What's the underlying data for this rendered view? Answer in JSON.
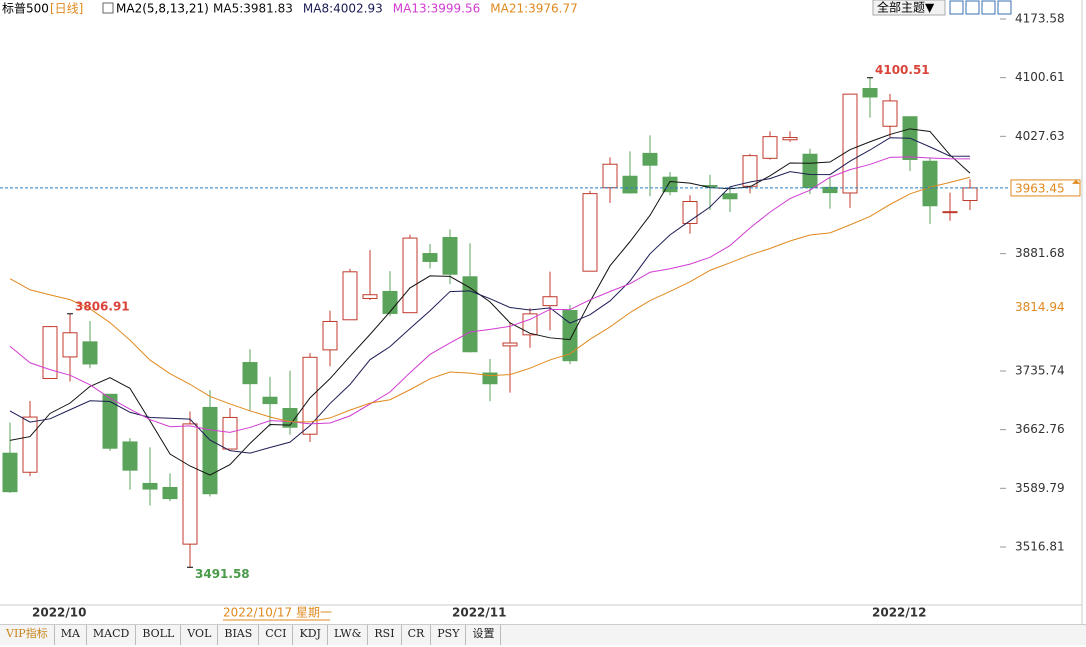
{
  "chart_data": {
    "type": "candlestick",
    "title": "标普500",
    "period": "[日线]",
    "indicator": "MA2(5,8,13,21)",
    "categories": [
      null,
      "2022/10",
      null,
      null,
      null,
      null,
      null,
      null,
      null,
      null,
      null,
      null,
      null,
      null,
      null,
      null,
      null,
      null,
      null,
      null,
      null,
      null,
      "2022/11",
      null,
      null,
      null,
      null,
      null,
      null,
      null,
      null,
      null,
      null,
      null,
      null,
      null,
      null,
      null,
      null,
      null,
      null,
      null,
      null,
      "2022/12",
      null,
      null,
      null,
      null,
      null
    ],
    "open": [
      3633.48,
      3609.78,
      3726.46,
      3753.25,
      3771.97,
      3706.74,
      3647.51,
      3595.86,
      3590.83,
      3520.37,
      3690.41,
      3638.65,
      3746.26,
      3703.11,
      3689.05,
      3657.1,
      3762.01,
      3799.44,
      3825.97,
      3834.69,
      3808.26,
      3881.85,
      3901.79,
      3852.9,
      3733.25,
      3766.98,
      3780.71,
      3817.02,
      3810.94,
      3859.89,
      3963.72,
      3977.97,
      4006.41,
      3976.82,
      3919.26,
      3966.39,
      3956.23,
      3965.51,
      4000.3,
      4023.34,
      4005.36,
      3964.19,
      3957.18,
      4087.14,
      4040.17,
      4052.02,
      3996.63,
      3933.28,
      3947.79
    ],
    "high": [
      3671.44,
      3698.35,
      3791.92,
      3806.91,
      3797.93,
      3706.74,
      3652.17,
      3640.66,
      3608.34,
      3685.41,
      3712.0,
      3689.73,
      3762.79,
      3728.58,
      3736.0,
      3757.89,
      3810.74,
      3862.85,
      3886.15,
      3859.95,
      3905.42,
      3893.73,
      3911.79,
      3894.44,
      3750.59,
      3796.34,
      3813.95,
      3859.4,
      3818.2,
      3959.94,
      4001.48,
      4008.97,
      4028.84,
      3983.09,
      3954.33,
      3979.89,
      3962.0,
      4005.88,
      4033.78,
      4034.02,
      4012.27,
      3976.77,
      4080.11,
      4100.51,
      4080.48,
      4052.45,
      4001.51,
      3957.57,
      3974.19
    ],
    "low": [
      3584.13,
      3604.93,
      3726.46,
      3722.66,
      3739.22,
      3636.58,
      3588.1,
      3568.45,
      3573.86,
      3491.58,
      3579.68,
      3638.65,
      3686.53,
      3666.51,
      3656.44,
      3647.42,
      3741.65,
      3799.44,
      3824.07,
      3803.79,
      3808.26,
      3863.18,
      3843.8,
      3758.68,
      3698.15,
      3708.84,
      3764.7,
      3786.28,
      3744.22,
      3859.89,
      3944.82,
      3956.4,
      3953.17,
      3954.34,
      3906.54,
      3935.98,
      3933.34,
      3956.88,
      3998.66,
      4020.76,
      3955.77,
      3937.65,
      3938.58,
      4050.87,
      4026.63,
      3984.49,
      3918.39,
      3922.68,
      3935.83
    ],
    "close": [
      3585.62,
      3678.43,
      3790.93,
      3783.28,
      3744.52,
      3639.66,
      3612.39,
      3588.84,
      3577.03,
      3669.91,
      3583.07,
      3677.95,
      3719.98,
      3695.16,
      3665.78,
      3752.75,
      3797.34,
      3859.11,
      3830.6,
      3807.3,
      3901.06,
      3871.98,
      3856.1,
      3759.69,
      3719.89,
      3770.55,
      3806.8,
      3828.11,
      3748.57,
      3956.37,
      3992.93,
      3957.25,
      3991.73,
      3958.79,
      3946.56,
      3965.34,
      3949.94,
      4003.58,
      4027.26,
      4026.12,
      3963.94,
      3957.63,
      4080.11,
      4076.57,
      4071.7,
      3998.84,
      3941.26,
      3933.92,
      3963.45
    ],
    "up_color": "#c0392b",
    "down_color": "#5aa35a",
    "series": [
      {
        "name": "MA5:3981.83",
        "color": "#111111",
        "values": [
          3649.49,
          3654.17,
          3682.9,
          3695.75,
          3716.56,
          3727.36,
          3714.16,
          3673.74,
          3632.49,
          3617.57,
          3606.25,
          3619.36,
          3645.59,
          3669.21,
          3668.39,
          3702.32,
          3726.2,
          3754.03,
          3781.12,
          3809.42,
          3839.08,
          3854.01,
          3853.41,
          3839.23,
          3821.74,
          3795.64,
          3782.61,
          3777.01,
          3774.78,
          3822.08,
          3866.56,
          3896.65,
          3929.37,
          3971.41,
          3969.45,
          3963.93,
          3962.47,
          3964.84,
          3978.54,
          3994.45,
          3994.17,
          3995.71,
          4011.01,
          4020.87,
          4029.99,
          4036.97,
          4033.7,
          4004.46,
          3981.83
        ]
      },
      {
        "name": "MA8:4002.93",
        "color": "#1c1c55",
        "values": [
          3686.08,
          3672.14,
          3676.26,
          3687.51,
          3698.7,
          3697.74,
          3684.41,
          3677.96,
          3676.89,
          3675.82,
          3649.84,
          3636.67,
          3633.6,
          3640.54,
          3647.22,
          3667.7,
          3695.24,
          3718.89,
          3749.83,
          3766.0,
          3788.64,
          3810.74,
          3834.53,
          3835.4,
          3825.72,
          3814.65,
          3811.67,
          3814.27,
          3795.21,
          3805.76,
          3822.86,
          3847.56,
          3881.54,
          3905.07,
          3922.54,
          3939.69,
          3964.86,
          3970.77,
          3975.06,
          3983.67,
          3980.19,
          3980.05,
          3996.74,
          4010.64,
          4025.86,
          4025.27,
          4014.52,
          4003.0,
          4002.93
        ]
      },
      {
        "name": "MA13:3999.56",
        "color": "#d23cd2",
        "values": [
          3766.55,
          3745.96,
          3737.47,
          3730.54,
          3718.59,
          3701.96,
          3688.3,
          3675.29,
          3666.35,
          3667.49,
          3662.55,
          3659.39,
          3665.51,
          3673.93,
          3672.96,
          3670.02,
          3671.11,
          3679.92,
          3694.61,
          3709.6,
          3733.62,
          3756.31,
          3770.63,
          3784.22,
          3787.44,
          3791.33,
          3799.92,
          3812.41,
          3812.08,
          3824.32,
          3834.61,
          3844.35,
          3858.54,
          3862.98,
          3868.72,
          3877.12,
          3891.76,
          3913.58,
          3933.33,
          3950.2,
          3960.64,
          3976.73,
          3986.24,
          3992.68,
          4001.48,
          4002.03,
          4000.68,
          3999.71,
          3999.56
        ]
      },
      {
        "name": "MA21:3976.77",
        "color": "#e0891e",
        "values": [
          3850.52,
          3836.79,
          3830.44,
          3824.49,
          3813.28,
          3795.83,
          3774.16,
          3749.33,
          3732.39,
          3719.24,
          3704.09,
          3694.78,
          3686.22,
          3678.56,
          3672.65,
          3672.4,
          3677.36,
          3687.07,
          3695.8,
          3700.01,
          3712.41,
          3726.05,
          3734.51,
          3733.02,
          3730.01,
          3731.25,
          3739.2,
          3749.48,
          3757.08,
          3775.15,
          3790.53,
          3808.35,
          3823.29,
          3834.66,
          3846.63,
          3860.9,
          3870.29,
          3880.11,
          3888.11,
          3897.42,
          3904.88,
          3907.58,
          3917.49,
          3927.99,
          3942.84,
          3956.13,
          3964.26,
          3970.31,
          3976.77
        ]
      }
    ],
    "ylim": [
      3444.66,
      4197.21
    ],
    "yticks": [
      4173.58,
      4100.61,
      4027.63,
      3881.68,
      3735.74,
      3662.76,
      3589.79,
      3516.81
    ],
    "level_marks": [
      3814.94
    ],
    "crosshair_date": "2022/10/17 星期一"
  },
  "toolbar": {
    "theme_button": "全部主题▼"
  },
  "tabs": [
    "VIP指标",
    "MA",
    "MACD",
    "BOLL",
    "VOL",
    "BIAS",
    "CCI",
    "KDJ",
    "LW&",
    "RSI",
    "CR",
    "PSY",
    "设置"
  ]
}
